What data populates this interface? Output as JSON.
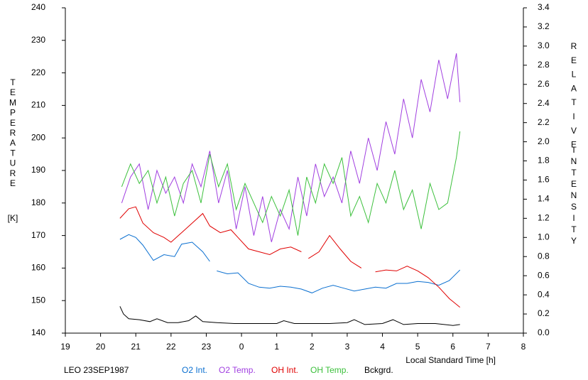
{
  "chart_data": {
    "type": "line",
    "label": "LEO 23SEP1987",
    "x_label": "Local Standard Time [h]",
    "y_label": "TEMPERATURE",
    "y_unit": "[K]",
    "y2_label_1": "RELATIVE",
    "y2_label_2": "INTENSITY",
    "xlim": [
      19,
      32
    ],
    "xticks": [
      19,
      20,
      21,
      22,
      23,
      {
        "value": 24,
        "label": "0"
      },
      {
        "value": 25,
        "label": "1"
      },
      {
        "value": 26,
        "label": "2"
      },
      {
        "value": 27,
        "label": "3"
      },
      {
        "value": 28,
        "label": "4"
      },
      {
        "value": 29,
        "label": "5"
      },
      {
        "value": 30,
        "label": "6"
      },
      {
        "value": 31,
        "label": "7"
      },
      {
        "value": 32,
        "label": "8"
      }
    ],
    "ylim": [
      140,
      240
    ],
    "yticks": [
      140,
      150,
      160,
      170,
      180,
      190,
      200,
      210,
      220,
      230,
      240
    ],
    "y2lim": [
      0,
      3.4
    ],
    "y2ticks": [
      {
        "value": 0,
        "label": "0.0"
      },
      0.2,
      0.4,
      0.6,
      0.8,
      {
        "value": 1,
        "label": "1.0"
      },
      1.2,
      1.4,
      1.6,
      1.8,
      {
        "value": 2,
        "label": "2.0"
      },
      2.2,
      2.4,
      2.6,
      2.8,
      {
        "value": 3,
        "label": "3.0"
      },
      3.2,
      3.4
    ],
    "series": [
      {
        "name": "O2 Int.",
        "color": "#0a6fd0",
        "axis": "y2",
        "x": [
          20.55,
          20.8,
          21.0,
          21.2,
          21.5,
          21.8,
          22.1,
          22.3,
          22.6,
          22.9,
          23.1,
          23.2,
          23.3,
          23.6,
          23.9,
          24.2,
          24.5,
          24.8,
          25.1,
          25.4,
          25.7,
          26.0,
          26.3,
          26.6,
          26.9,
          27.2,
          27.5,
          27.8,
          28.1,
          28.4,
          28.7,
          29.0,
          29.3,
          29.6,
          29.9,
          30.2
        ],
        "values": [
          0.98,
          1.03,
          1.0,
          0.92,
          0.76,
          0.82,
          0.8,
          0.93,
          0.95,
          0.85,
          0.75,
          null,
          0.65,
          0.62,
          0.63,
          0.52,
          0.48,
          0.47,
          0.49,
          0.48,
          0.46,
          0.42,
          0.47,
          0.5,
          0.47,
          0.44,
          0.46,
          0.48,
          0.47,
          0.52,
          0.52,
          0.54,
          0.53,
          0.5,
          0.55,
          0.66
        ]
      },
      {
        "name": "O2 Temp.",
        "color": "#a03ee0",
        "x": [
          20.6,
          20.85,
          21.1,
          21.35,
          21.6,
          21.85,
          22.1,
          22.35,
          22.6,
          22.85,
          23.1,
          23.35,
          23.6,
          23.85,
          24.1,
          24.35,
          24.6,
          24.85,
          25.1,
          25.35,
          25.6,
          25.85,
          26.1,
          26.35,
          26.6,
          26.85,
          27.1,
          27.35,
          27.6,
          27.85,
          28.1,
          28.35,
          28.6,
          28.85,
          29.1,
          29.35,
          29.6,
          29.85,
          30.1,
          30.2
        ],
        "values": [
          180,
          188,
          192,
          178,
          190,
          183,
          188,
          180,
          192,
          185,
          196,
          180,
          190,
          172,
          185,
          170,
          182,
          168,
          178,
          172,
          188,
          176,
          192,
          182,
          188,
          180,
          196,
          186,
          200,
          190,
          205,
          195,
          212,
          200,
          218,
          208,
          224,
          212,
          226,
          211
        ]
      },
      {
        "name": "OH Int.",
        "color": "#e00000",
        "axis": "y2",
        "x": [
          20.55,
          20.8,
          21.0,
          21.2,
          21.5,
          21.8,
          22.0,
          22.3,
          22.6,
          22.9,
          23.1,
          23.4,
          23.7,
          23.9,
          24.2,
          24.5,
          24.8,
          25.1,
          25.4,
          25.7,
          25.8,
          25.9,
          26.2,
          26.5,
          26.8,
          27.1,
          27.4,
          27.7,
          27.8,
          28.1,
          28.4,
          28.7,
          29.0,
          29.3,
          29.6,
          29.9,
          30.2
        ],
        "values": [
          1.2,
          1.3,
          1.32,
          1.15,
          1.05,
          1.0,
          0.95,
          1.05,
          1.15,
          1.25,
          1.12,
          1.05,
          1.08,
          1.0,
          0.88,
          0.85,
          0.82,
          0.88,
          0.9,
          0.85,
          null,
          0.78,
          0.85,
          1.02,
          0.88,
          0.75,
          0.68,
          null,
          0.64,
          0.66,
          0.65,
          0.7,
          0.65,
          0.58,
          0.48,
          0.36,
          0.27
        ]
      },
      {
        "name": "OH Temp.",
        "color": "#3cc03c",
        "x": [
          20.6,
          20.85,
          21.1,
          21.35,
          21.6,
          21.85,
          22.1,
          22.35,
          22.6,
          22.85,
          23.1,
          23.35,
          23.6,
          23.85,
          24.1,
          24.35,
          24.6,
          24.85,
          25.1,
          25.35,
          25.6,
          25.85,
          26.1,
          26.35,
          26.6,
          26.85,
          27.1,
          27.35,
          27.6,
          27.85,
          28.1,
          28.35,
          28.6,
          28.85,
          29.1,
          29.35,
          29.6,
          29.85,
          30.1,
          30.2
        ],
        "values": [
          185,
          192,
          186,
          190,
          180,
          188,
          176,
          186,
          190,
          180,
          195,
          185,
          192,
          178,
          186,
          180,
          174,
          182,
          176,
          184,
          170,
          188,
          180,
          192,
          186,
          194,
          176,
          182,
          174,
          186,
          180,
          190,
          178,
          184,
          172,
          186,
          178,
          180,
          194,
          202
        ]
      },
      {
        "name": "Bckgrd.",
        "color": "#000000",
        "axis": "y2",
        "x": [
          20.55,
          20.65,
          20.8,
          21.1,
          21.4,
          21.6,
          21.9,
          22.2,
          22.5,
          22.7,
          22.9,
          23.3,
          23.8,
          24.2,
          24.6,
          25.0,
          25.2,
          25.5,
          26.0,
          26.5,
          27.0,
          27.2,
          27.5,
          28.0,
          28.3,
          28.6,
          29.0,
          29.5,
          30.0,
          30.2
        ],
        "values": [
          0.28,
          0.2,
          0.15,
          0.14,
          0.12,
          0.15,
          0.11,
          0.11,
          0.13,
          0.18,
          0.12,
          0.11,
          0.1,
          0.1,
          0.1,
          0.1,
          0.13,
          0.1,
          0.1,
          0.1,
          0.11,
          0.14,
          0.09,
          0.1,
          0.14,
          0.09,
          0.1,
          0.1,
          0.08,
          0.09
        ]
      }
    ]
  }
}
